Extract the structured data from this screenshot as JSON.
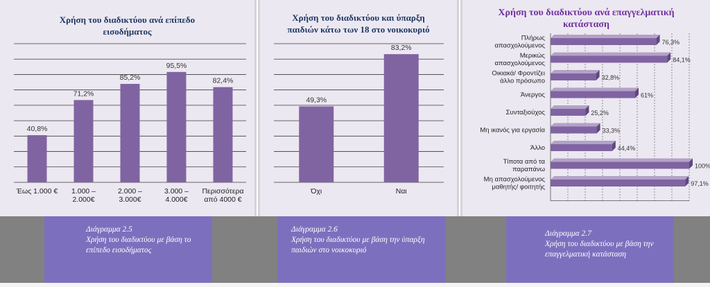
{
  "chart_data": [
    {
      "type": "bar",
      "title": "Χρήση του διαδικτύου ανά επίπεδο εισοδήματος",
      "categories": [
        [
          "Έως 1.000 €"
        ],
        [
          "1.000 –",
          "2.000€"
        ],
        [
          "2.000 –",
          "3.000€"
        ],
        [
          "3.000 –",
          "4.000€"
        ],
        [
          "Περισσότερα",
          "από  4000 €"
        ]
      ],
      "values": [
        40.8,
        71.2,
        85.2,
        95.5,
        82.4
      ],
      "labels": [
        "40,8%",
        "71,2%",
        "85,2%",
        "95,5%",
        "82,4%"
      ],
      "ylim": [
        0,
        120
      ],
      "grid": true
    },
    {
      "type": "bar",
      "title": "Χρήση του διαδικτύου και ύπαρξη παιδιών κάτω των 18 στο νοικοκυριό",
      "categories": [
        [
          "Όχι"
        ],
        [
          "Ναι"
        ]
      ],
      "values": [
        49.3,
        83.2
      ],
      "labels": [
        "49,3%",
        "83,2%"
      ],
      "ylim": [
        0,
        90
      ],
      "grid": true
    },
    {
      "type": "bar",
      "orientation": "horizontal",
      "title": "Χρήση του διαδικτύου ανά επαγγελματική κατάσταση",
      "categories": [
        [
          "Πλήρως",
          "απασχολούμενος"
        ],
        [
          "Μερικώς",
          "απασχολούμενος"
        ],
        [
          "Οικιακά/ Φροντίζει",
          "άλλο πρόσωπο"
        ],
        [
          "Άνεργος"
        ],
        [
          "Συνταξιούχος"
        ],
        [
          "Μη ικανός για εργασία"
        ],
        [
          "Άλλο"
        ],
        [
          "Τίποτα από τα",
          "παραπάνω"
        ],
        [
          "Μη απασχολούμενος",
          "μαθητής/ φοιτητής"
        ]
      ],
      "values": [
        76.3,
        84.1,
        32.8,
        61,
        25.2,
        33.3,
        44.4,
        100,
        97.1
      ],
      "labels": [
        "76,3%",
        "84,1%",
        "32,8%",
        "61%",
        "25,2%",
        "33,3%",
        "44,4%",
        "100%",
        "97,1%"
      ],
      "xlim": [
        0,
        100
      ],
      "grid": true
    }
  ],
  "captions": [
    {
      "number": "Διάγραμμα 2.5",
      "text": "Χρήση του  διαδικτύου με βάση το επίπεδο εισοδήματος"
    },
    {
      "number": "Διάγραμμα 2.6",
      "text": "Χρήση του διαδικτύου  με βάση την ύπαρξη παιδιών στο νοικοκυριό"
    },
    {
      "number": "Διάγραμμα 2.7",
      "text": "Χρήση του  διαδικτύου με βάση την επαγγελματική κατάσταση"
    }
  ],
  "colors": {
    "bar": "#8064a2",
    "bar_side": "#5e4880",
    "bar_light": "#b3a2c7",
    "title1": "#1f3864",
    "title2": "#7030a0"
  }
}
